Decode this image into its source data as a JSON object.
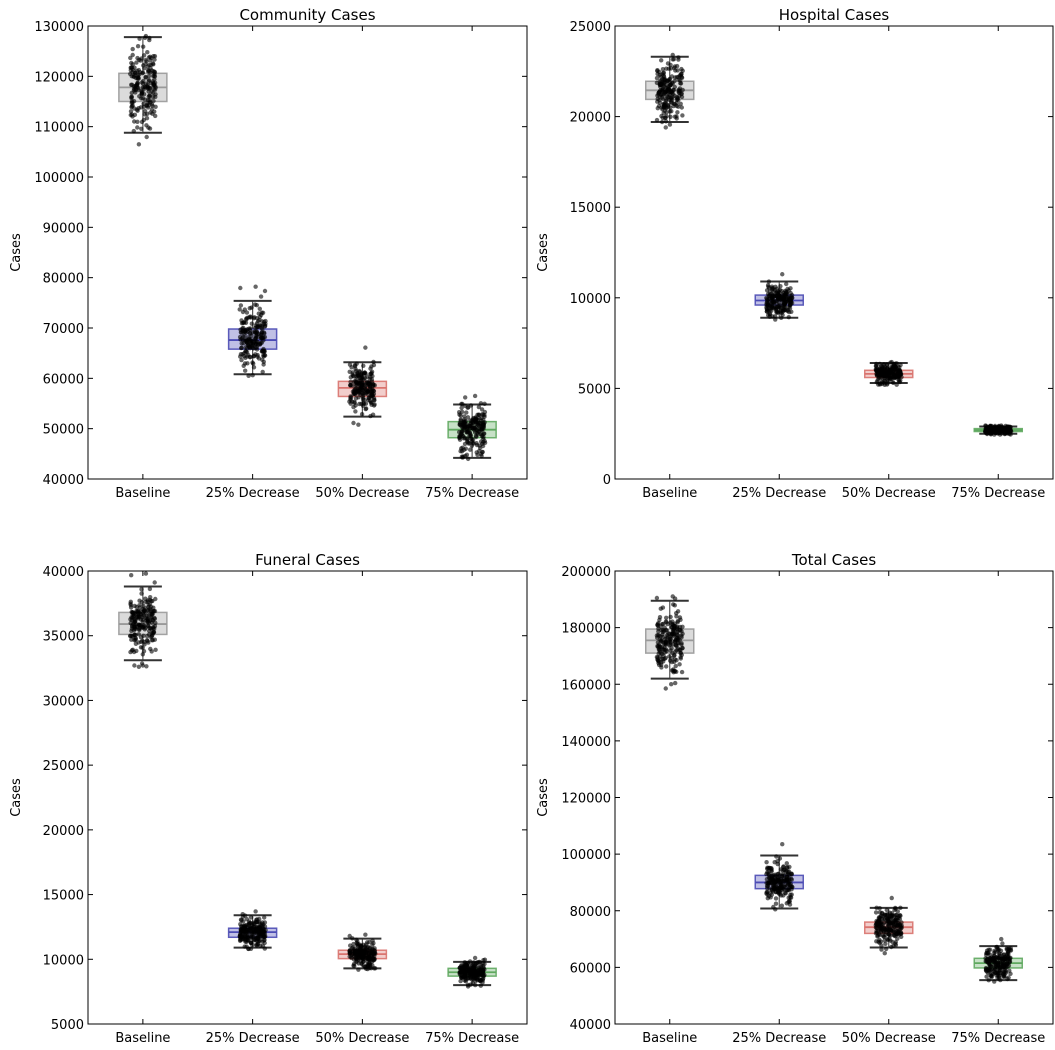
{
  "chart_data": [
    {
      "type": "box",
      "title": "Community Cases",
      "ylabel": "Cases",
      "ylim": [
        40000,
        130000
      ],
      "yticks": [
        40000,
        50000,
        60000,
        70000,
        80000,
        90000,
        100000,
        110000,
        120000,
        130000
      ],
      "categories": [
        "Baseline",
        "25% Decrease",
        "50% Decrease",
        "75% Decrease"
      ],
      "colors": [
        "#999999",
        "#4b4bb4",
        "#d9736e",
        "#5fa85f"
      ],
      "boxes": [
        {
          "whisker_low": 108800,
          "q1": 115000,
          "median": 117800,
          "q3": 120600,
          "whisker_high": 127800,
          "points_low": 106500,
          "points_high": 128000
        },
        {
          "whisker_low": 60800,
          "q1": 65800,
          "median": 67600,
          "q3": 69800,
          "whisker_high": 75400,
          "points_low": 60500,
          "points_high": 78200
        },
        {
          "whisker_low": 52400,
          "q1": 56400,
          "median": 58100,
          "q3": 59400,
          "whisker_high": 63200,
          "points_low": 50800,
          "points_high": 66100
        },
        {
          "whisker_low": 44200,
          "q1": 48200,
          "median": 49800,
          "q3": 51400,
          "whisker_high": 54800,
          "points_low": 44000,
          "points_high": 56500
        }
      ]
    },
    {
      "type": "box",
      "title": "Hospital Cases",
      "ylabel": "Cases",
      "ylim": [
        0,
        25000
      ],
      "yticks": [
        0,
        5000,
        10000,
        15000,
        20000,
        25000
      ],
      "categories": [
        "Baseline",
        "25% Decrease",
        "50% Decrease",
        "75% Decrease"
      ],
      "colors": [
        "#999999",
        "#4b4bb4",
        "#d9736e",
        "#5fa85f"
      ],
      "boxes": [
        {
          "whisker_low": 19700,
          "q1": 20950,
          "median": 21450,
          "q3": 21950,
          "whisker_high": 23300,
          "points_low": 19400,
          "points_high": 23400
        },
        {
          "whisker_low": 8900,
          "q1": 9600,
          "median": 9850,
          "q3": 10150,
          "whisker_high": 10900,
          "points_low": 8800,
          "points_high": 11300
        },
        {
          "whisker_low": 5300,
          "q1": 5600,
          "median": 5800,
          "q3": 6000,
          "whisker_high": 6400,
          "points_low": 5200,
          "points_high": 6450
        },
        {
          "whisker_low": 2500,
          "q1": 2620,
          "median": 2700,
          "q3": 2780,
          "whisker_high": 2900,
          "points_low": 2450,
          "points_high": 2950
        }
      ]
    },
    {
      "type": "box",
      "title": "Funeral Cases",
      "ylabel": "Cases",
      "ylim": [
        5000,
        40000
      ],
      "yticks": [
        5000,
        10000,
        15000,
        20000,
        25000,
        30000,
        35000,
        40000
      ],
      "categories": [
        "Baseline",
        "25% Decrease",
        "50% Decrease",
        "75% Decrease"
      ],
      "colors": [
        "#999999",
        "#4b4bb4",
        "#d9736e",
        "#5fa85f"
      ],
      "boxes": [
        {
          "whisker_low": 33100,
          "q1": 35100,
          "median": 35900,
          "q3": 36800,
          "whisker_high": 38800,
          "points_low": 32600,
          "points_high": 39800
        },
        {
          "whisker_low": 10900,
          "q1": 11700,
          "median": 12100,
          "q3": 12400,
          "whisker_high": 13400,
          "points_low": 10800,
          "points_high": 13700
        },
        {
          "whisker_low": 9300,
          "q1": 10050,
          "median": 10400,
          "q3": 10700,
          "whisker_high": 11600,
          "points_low": 9200,
          "points_high": 11900
        },
        {
          "whisker_low": 8000,
          "q1": 8700,
          "median": 9000,
          "q3": 9300,
          "whisker_high": 9800,
          "points_low": 7900,
          "points_high": 10100
        }
      ]
    },
    {
      "type": "box",
      "title": "Total Cases",
      "ylabel": "Cases",
      "ylim": [
        40000,
        200000
      ],
      "yticks": [
        40000,
        60000,
        80000,
        100000,
        120000,
        140000,
        160000,
        180000,
        200000
      ],
      "categories": [
        "Baseline",
        "25% Decrease",
        "50% Decrease",
        "75% Decrease"
      ],
      "colors": [
        "#999999",
        "#4b4bb4",
        "#d9736e",
        "#5fa85f"
      ],
      "boxes": [
        {
          "whisker_low": 162000,
          "q1": 171000,
          "median": 175500,
          "q3": 179500,
          "whisker_high": 189500,
          "points_low": 158500,
          "points_high": 191000
        },
        {
          "whisker_low": 80800,
          "q1": 87800,
          "median": 90000,
          "q3": 92500,
          "whisker_high": 99500,
          "points_low": 80500,
          "points_high": 103500
        },
        {
          "whisker_low": 67000,
          "q1": 72000,
          "median": 74200,
          "q3": 76000,
          "whisker_high": 81000,
          "points_low": 65000,
          "points_high": 84500
        },
        {
          "whisker_low": 55500,
          "q1": 59800,
          "median": 61500,
          "q3": 63200,
          "whisker_high": 67500,
          "points_low": 55000,
          "points_high": 70000
        }
      ]
    }
  ]
}
